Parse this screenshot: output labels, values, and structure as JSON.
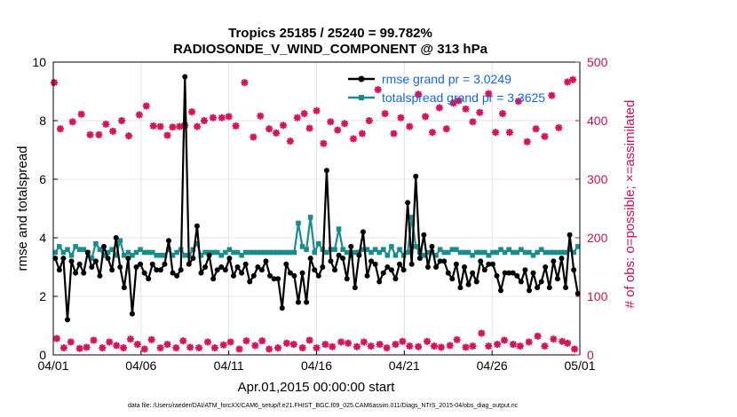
{
  "chart_data": {
    "type": "line",
    "title_line1": "Tropics 25185 / 25240 = 99.782%",
    "title_line2": "RADIOSONDE_V_WIND_COMPONENT @ 313 hPa",
    "xlabel": "Apr.01,2015 00:00:00 start",
    "ylabel": "rmse and totalspread",
    "ylabel_right": "# of obs: o=possible; ×=assimilated",
    "footer": "data file: /Users/raeder/DAI/ATM_forcXX/CAM6_setup/f.e21.FHIST_BGC.f09_025.CAM6assim.011/Diags_NTrS_2015-04/obs_diag_output.nc",
    "x_ticks": [
      {
        "value": 0,
        "label": "04/01"
      },
      {
        "value": 5,
        "label": "04/06"
      },
      {
        "value": 10,
        "label": "04/11"
      },
      {
        "value": 15,
        "label": "04/16"
      },
      {
        "value": 20,
        "label": "04/21"
      },
      {
        "value": 25,
        "label": "04/26"
      },
      {
        "value": 30,
        "label": "05/01"
      }
    ],
    "ylim": [
      0,
      10
    ],
    "y_ticks": [
      0,
      2,
      4,
      6,
      8,
      10
    ],
    "ylim_right": [
      0,
      500
    ],
    "y_ticks_right": [
      0,
      100,
      200,
      300,
      400,
      500
    ],
    "xlim": [
      0,
      30
    ],
    "colors": {
      "rmse": "#000000",
      "spread": "#1a8c8c",
      "obs": "#d4145a",
      "legend_text": "#1565e0",
      "right_axis": "#c8104f"
    },
    "series": [
      {
        "name": "rmse grand pr = 3.0249",
        "key": "rmse",
        "values": [
          3.3,
          2.9,
          3.3,
          1.2,
          3.2,
          2.8,
          3.1,
          2.8,
          3.5,
          3.0,
          3.2,
          2.7,
          3.7,
          3.3,
          2.9,
          4.0,
          3.0,
          2.3,
          3.3,
          1.4,
          3.0,
          3.1,
          2.8,
          2.6,
          3.1,
          2.9,
          2.9,
          3.1,
          3.9,
          2.8,
          2.7,
          2.9,
          9.5,
          3.1,
          3.3,
          4.4,
          2.8,
          3.0,
          3.4,
          2.6,
          2.9,
          3.0,
          2.9,
          3.3,
          2.7,
          3.0,
          2.8,
          3.1,
          2.5,
          2.7,
          3.0,
          2.9,
          3.2,
          2.7,
          2.6,
          2.6,
          1.6,
          3.1,
          2.8,
          2.7,
          1.8,
          2.8,
          1.8,
          3.3,
          2.9,
          2.7,
          3.0,
          6.3,
          3.2,
          2.9,
          3.4,
          3.3,
          2.6,
          3.7,
          2.3,
          3.4,
          4.2,
          2.7,
          3.2,
          3.1,
          2.5,
          2.8,
          3.0,
          2.9,
          2.6,
          3.1,
          2.9,
          5.2,
          3.1,
          6.1,
          3.3,
          4.1,
          3.0,
          3.7,
          3.0,
          3.2,
          3.2,
          2.8,
          2.6,
          3.1,
          2.3,
          3.0,
          2.4,
          2.8,
          2.5,
          3.2,
          2.9,
          3.1,
          3.1,
          2.7,
          2.2,
          2.8,
          2.8,
          2.8,
          2.7,
          2.5,
          2.9,
          2.2,
          2.8,
          2.3,
          2.5,
          3.0,
          2.3,
          3.2,
          2.6,
          3.3,
          2.3,
          4.1,
          2.9,
          2.1
        ]
      },
      {
        "name": "totalspread grand pr = 3.3625",
        "key": "spread",
        "values": [
          3.5,
          3.7,
          3.5,
          3.6,
          3.4,
          3.7,
          3.6,
          3.6,
          3.5,
          3.3,
          3.8,
          3.6,
          3.4,
          3.5,
          3.6,
          3.4,
          3.9,
          3.4,
          3.5,
          3.4,
          3.5,
          3.6,
          3.5,
          3.5,
          3.5,
          3.4,
          3.4,
          3.4,
          3.6,
          3.4,
          3.5,
          3.6,
          3.4,
          3.4,
          3.6,
          3.8,
          3.4,
          3.5,
          3.5,
          3.5,
          3.5,
          3.4,
          3.5,
          3.6,
          3.5,
          3.5,
          3.4,
          3.5,
          3.5,
          3.5,
          3.5,
          3.5,
          3.5,
          3.5,
          3.5,
          3.5,
          3.5,
          3.5,
          3.5,
          3.5,
          4.5,
          3.7,
          3.6,
          4.7,
          3.5,
          3.8,
          3.6,
          3.5,
          3.6,
          3.6,
          4.3,
          3.6,
          3.5,
          3.4,
          3.5,
          3.5,
          3.6,
          3.6,
          3.5,
          3.6,
          3.5,
          3.6,
          3.4,
          3.7,
          3.4,
          3.6,
          3.4,
          3.5,
          4.7,
          3.7,
          3.5,
          3.4,
          3.5,
          3.5,
          3.4,
          3.6,
          3.5,
          3.5,
          3.6,
          3.6,
          3.5,
          3.5,
          3.5,
          3.4,
          3.5,
          3.5,
          3.5,
          3.4,
          3.5,
          3.5,
          3.6,
          3.5,
          3.6,
          3.5,
          3.5,
          3.6,
          3.5,
          3.5,
          3.4,
          3.5,
          3.6,
          3.5,
          3.5,
          3.5,
          3.5,
          3.5,
          3.5,
          3.6,
          3.5,
          3.7
        ]
      },
      {
        "name": "obs possible",
        "key": "obs_high",
        "points": [
          [
            0.05,
            465
          ],
          [
            0.4,
            386
          ],
          [
            1.1,
            398
          ],
          [
            1.6,
            411
          ],
          [
            2.1,
            376
          ],
          [
            2.6,
            376
          ],
          [
            3.0,
            394
          ],
          [
            3.4,
            382
          ],
          [
            3.9,
            400
          ],
          [
            4.3,
            374
          ],
          [
            4.9,
            410
          ],
          [
            5.3,
            425
          ],
          [
            5.7,
            391
          ],
          [
            6.1,
            390
          ],
          [
            6.5,
            375
          ],
          [
            6.8,
            389
          ],
          [
            7.2,
            390
          ],
          [
            7.5,
            392
          ],
          [
            7.9,
            415
          ],
          [
            8.2,
            390
          ],
          [
            8.6,
            400
          ],
          [
            9.1,
            405
          ],
          [
            9.6,
            405
          ],
          [
            10.0,
            407
          ],
          [
            10.4,
            391
          ],
          [
            10.9,
            465
          ],
          [
            11.4,
            372
          ],
          [
            11.8,
            408
          ],
          [
            12.3,
            386
          ],
          [
            12.7,
            379
          ],
          [
            13.1,
            392
          ],
          [
            13.5,
            365
          ],
          [
            13.9,
            405
          ],
          [
            14.3,
            412
          ],
          [
            14.6,
            387
          ],
          [
            15.0,
            417
          ],
          [
            15.4,
            361
          ],
          [
            15.8,
            398
          ],
          [
            16.2,
            384
          ],
          [
            16.6,
            395
          ],
          [
            17.1,
            369
          ],
          [
            17.6,
            378
          ],
          [
            18.0,
            400
          ],
          [
            18.5,
            453
          ],
          [
            18.9,
            412
          ],
          [
            19.4,
            378
          ],
          [
            19.8,
            405
          ],
          [
            20.3,
            390
          ],
          [
            20.8,
            445
          ],
          [
            21.2,
            407
          ],
          [
            21.6,
            380
          ],
          [
            22.0,
            422
          ],
          [
            22.4,
            386
          ],
          [
            22.8,
            430
          ],
          [
            23.1,
            434
          ],
          [
            23.5,
            420
          ],
          [
            23.9,
            398
          ],
          [
            24.3,
            414
          ],
          [
            24.8,
            446
          ],
          [
            25.2,
            380
          ],
          [
            25.6,
            412
          ],
          [
            26.0,
            380
          ],
          [
            26.5,
            433
          ],
          [
            27.0,
            364
          ],
          [
            27.5,
            386
          ],
          [
            28.0,
            373
          ],
          [
            28.4,
            443
          ],
          [
            28.8,
            388
          ],
          [
            29.3,
            466
          ],
          [
            29.6,
            470
          ]
        ]
      },
      {
        "name": "obs assimilated",
        "key": "obs_low",
        "points": [
          [
            0.2,
            28
          ],
          [
            0.6,
            12
          ],
          [
            1.0,
            22
          ],
          [
            1.5,
            11
          ],
          [
            1.9,
            13
          ],
          [
            2.3,
            25
          ],
          [
            2.8,
            12
          ],
          [
            3.2,
            22
          ],
          [
            3.6,
            16
          ],
          [
            4.0,
            12
          ],
          [
            4.4,
            27
          ],
          [
            4.8,
            18
          ],
          [
            5.2,
            10
          ],
          [
            5.6,
            26
          ],
          [
            6.1,
            12
          ],
          [
            6.5,
            18
          ],
          [
            7.0,
            12
          ],
          [
            7.4,
            24
          ],
          [
            7.8,
            13
          ],
          [
            8.3,
            12
          ],
          [
            8.8,
            22
          ],
          [
            9.2,
            12
          ],
          [
            9.7,
            17
          ],
          [
            10.1,
            22
          ],
          [
            10.6,
            10
          ],
          [
            11.0,
            24
          ],
          [
            11.5,
            16
          ],
          [
            11.9,
            24
          ],
          [
            12.3,
            10
          ],
          [
            12.8,
            12
          ],
          [
            13.3,
            20
          ],
          [
            13.7,
            18
          ],
          [
            14.2,
            12
          ],
          [
            14.6,
            25
          ],
          [
            15.0,
            12
          ],
          [
            15.5,
            18
          ],
          [
            15.9,
            14
          ],
          [
            16.4,
            22
          ],
          [
            16.8,
            20
          ],
          [
            17.3,
            14
          ],
          [
            17.7,
            22
          ],
          [
            18.1,
            15
          ],
          [
            18.6,
            18
          ],
          [
            19.0,
            12
          ],
          [
            19.5,
            18
          ],
          [
            19.9,
            23
          ],
          [
            20.3,
            15
          ],
          [
            20.8,
            14
          ],
          [
            21.3,
            23
          ],
          [
            21.7,
            15
          ],
          [
            22.1,
            13
          ],
          [
            22.6,
            16
          ],
          [
            23.0,
            26
          ],
          [
            23.5,
            13
          ],
          [
            23.9,
            15
          ],
          [
            24.4,
            37
          ],
          [
            24.8,
            15
          ],
          [
            25.3,
            18
          ],
          [
            25.7,
            25
          ],
          [
            26.2,
            18
          ],
          [
            26.6,
            15
          ],
          [
            27.1,
            22
          ],
          [
            27.6,
            32
          ],
          [
            28.0,
            15
          ],
          [
            28.5,
            27
          ],
          [
            29.0,
            23
          ],
          [
            29.3,
            20
          ],
          [
            29.7,
            10
          ]
        ]
      }
    ]
  }
}
